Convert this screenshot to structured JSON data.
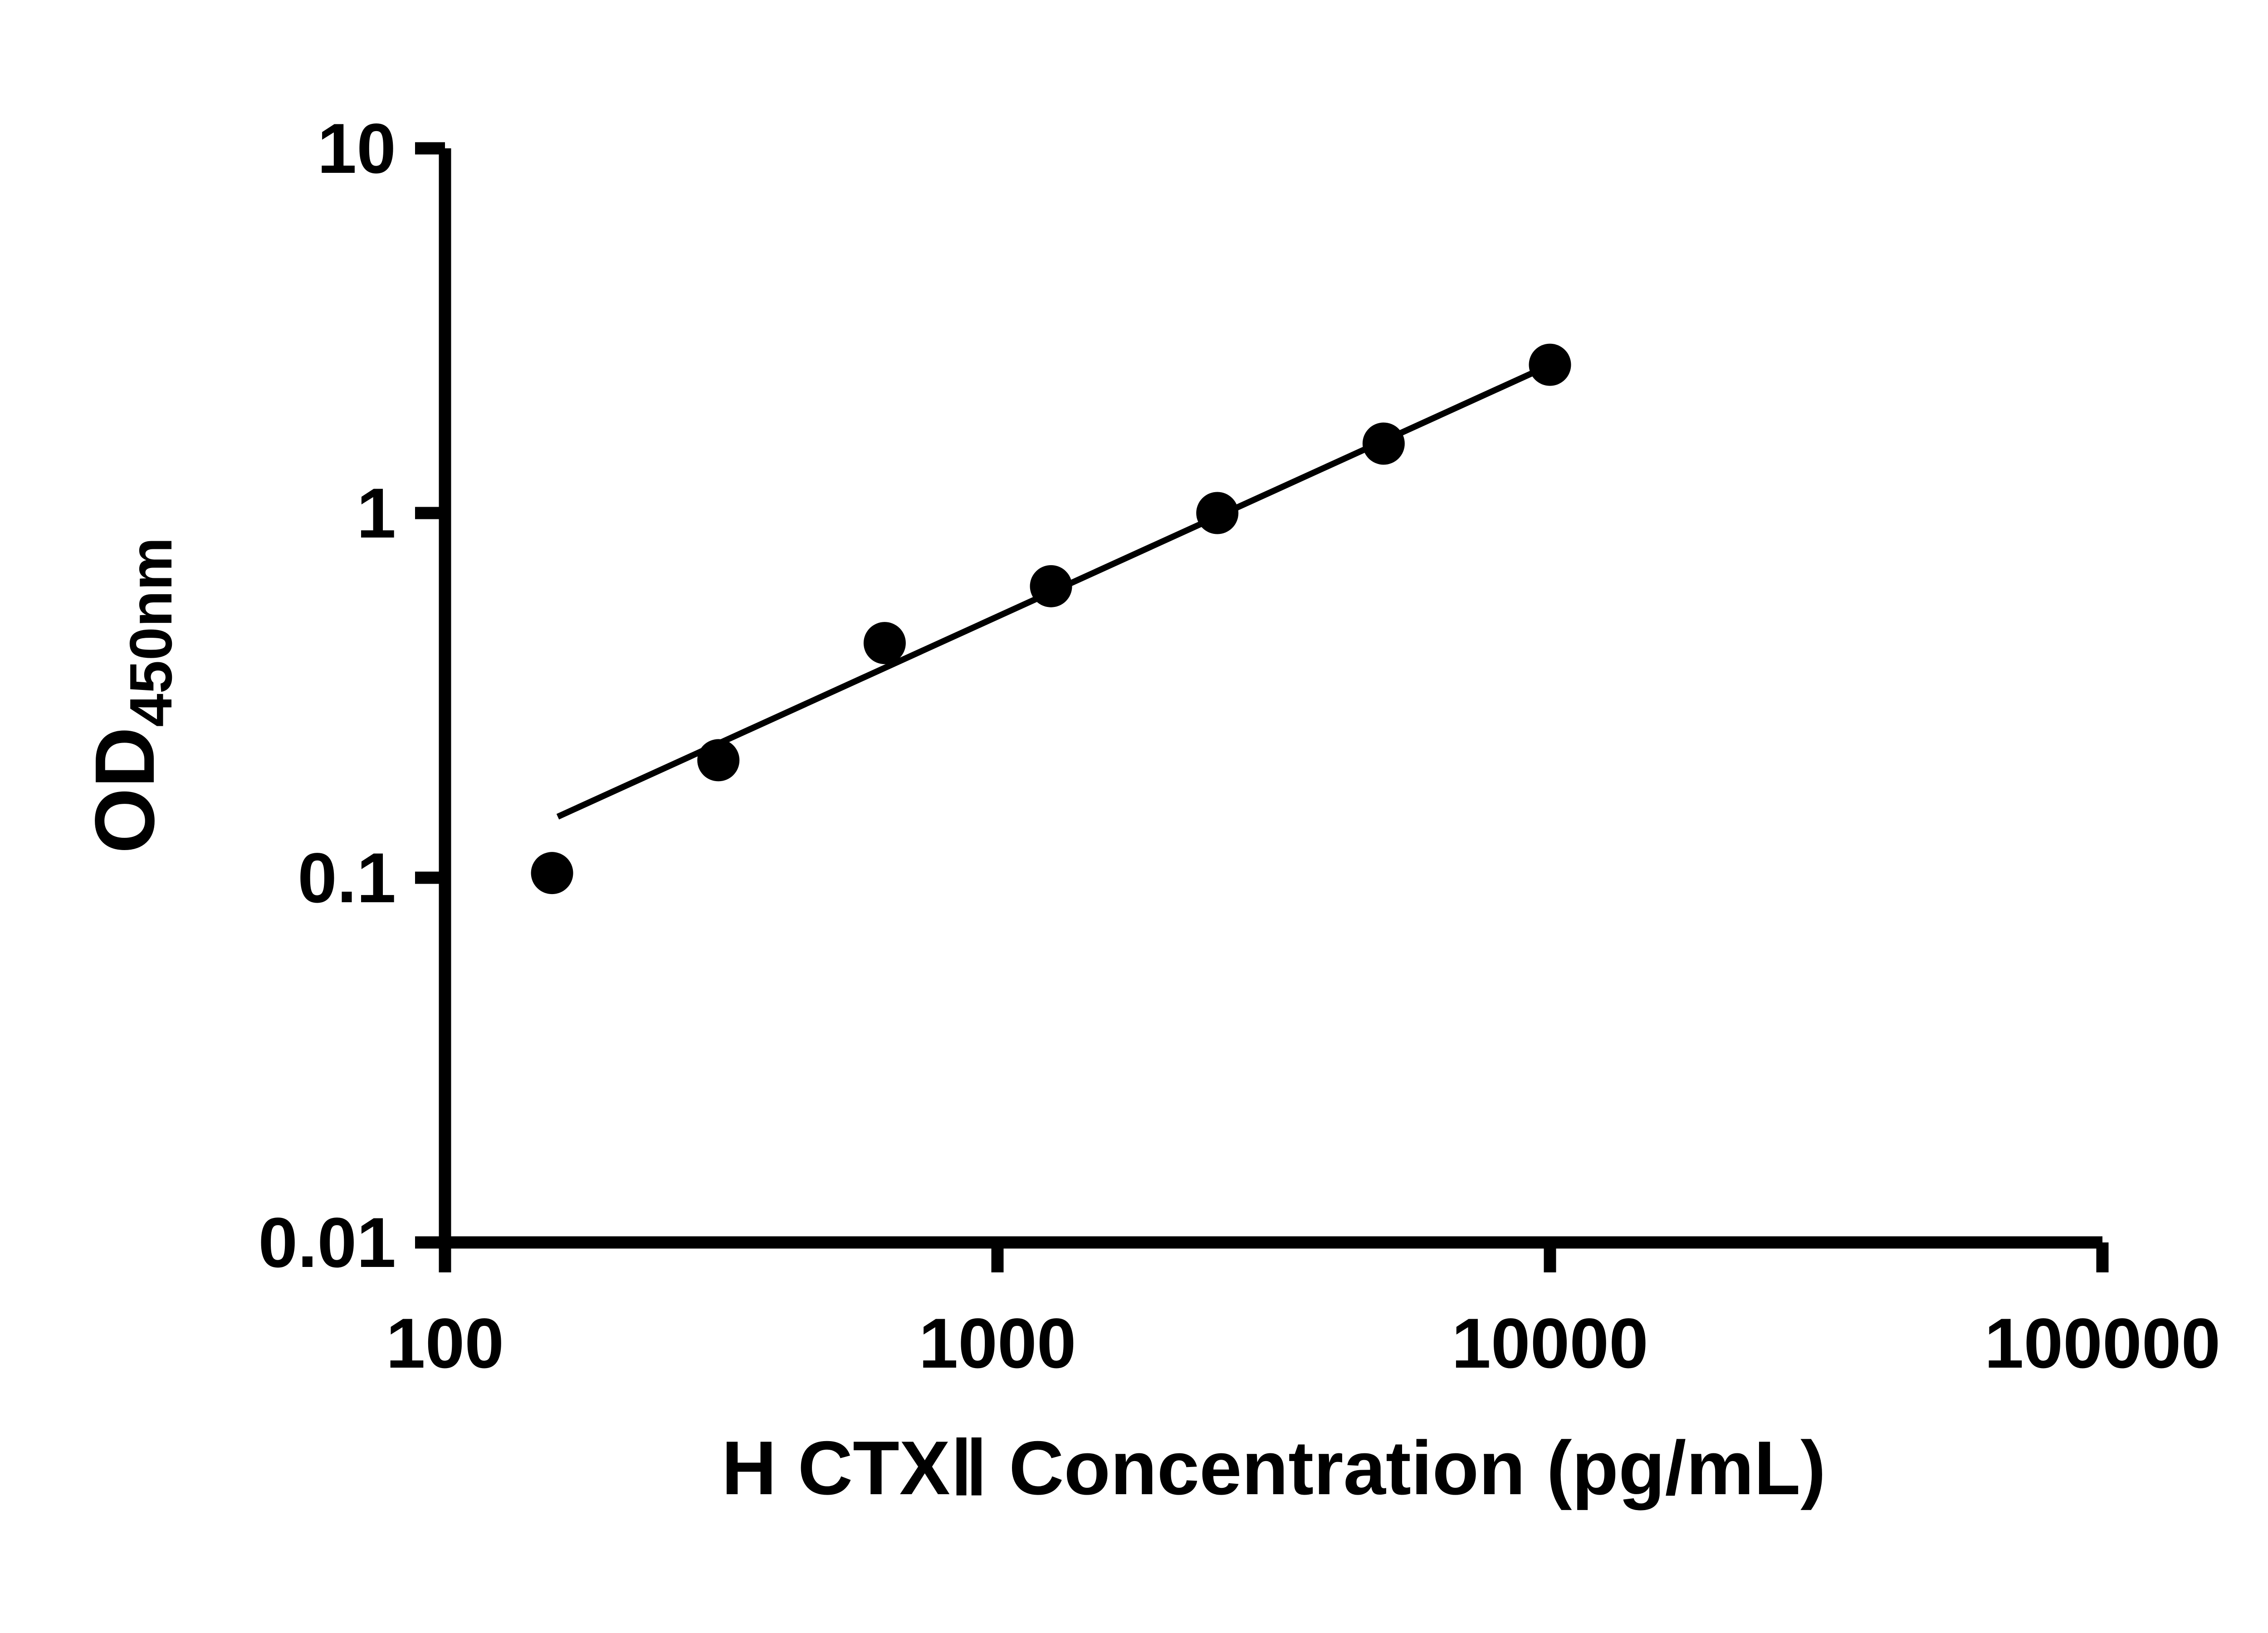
{
  "figure": {
    "background": "#ffffff"
  },
  "chart_data": {
    "type": "scatter",
    "title": "",
    "xlabel": "H CTXⅡ Concentration (pg/mL)",
    "ylabel_main": "OD",
    "ylabel_sub": "450nm",
    "x_scale": "log",
    "y_scale": "log",
    "xlim": [
      100,
      100000
    ],
    "ylim": [
      0.01,
      10
    ],
    "x_ticks": [
      100,
      1000,
      10000,
      100000
    ],
    "x_tick_labels": [
      "100",
      "1000",
      "10000",
      "100000"
    ],
    "y_ticks": [
      0.01,
      0.1,
      1,
      10
    ],
    "y_tick_labels": [
      "0.01",
      "0.1",
      "1",
      "10"
    ],
    "points": [
      {
        "x": 156.25,
        "y": 0.103
      },
      {
        "x": 312.5,
        "y": 0.21
      },
      {
        "x": 625,
        "y": 0.44
      },
      {
        "x": 1250,
        "y": 0.63
      },
      {
        "x": 2500,
        "y": 1.0
      },
      {
        "x": 5000,
        "y": 1.55
      },
      {
        "x": 10000,
        "y": 2.55
      }
    ],
    "trendline": {
      "x1": 160,
      "y1": 0.147,
      "x2": 10200,
      "y2": 2.58
    },
    "marker_color": "#000000",
    "line_color": "#000000",
    "axis_color": "#000000",
    "grid": false,
    "legend": null
  }
}
